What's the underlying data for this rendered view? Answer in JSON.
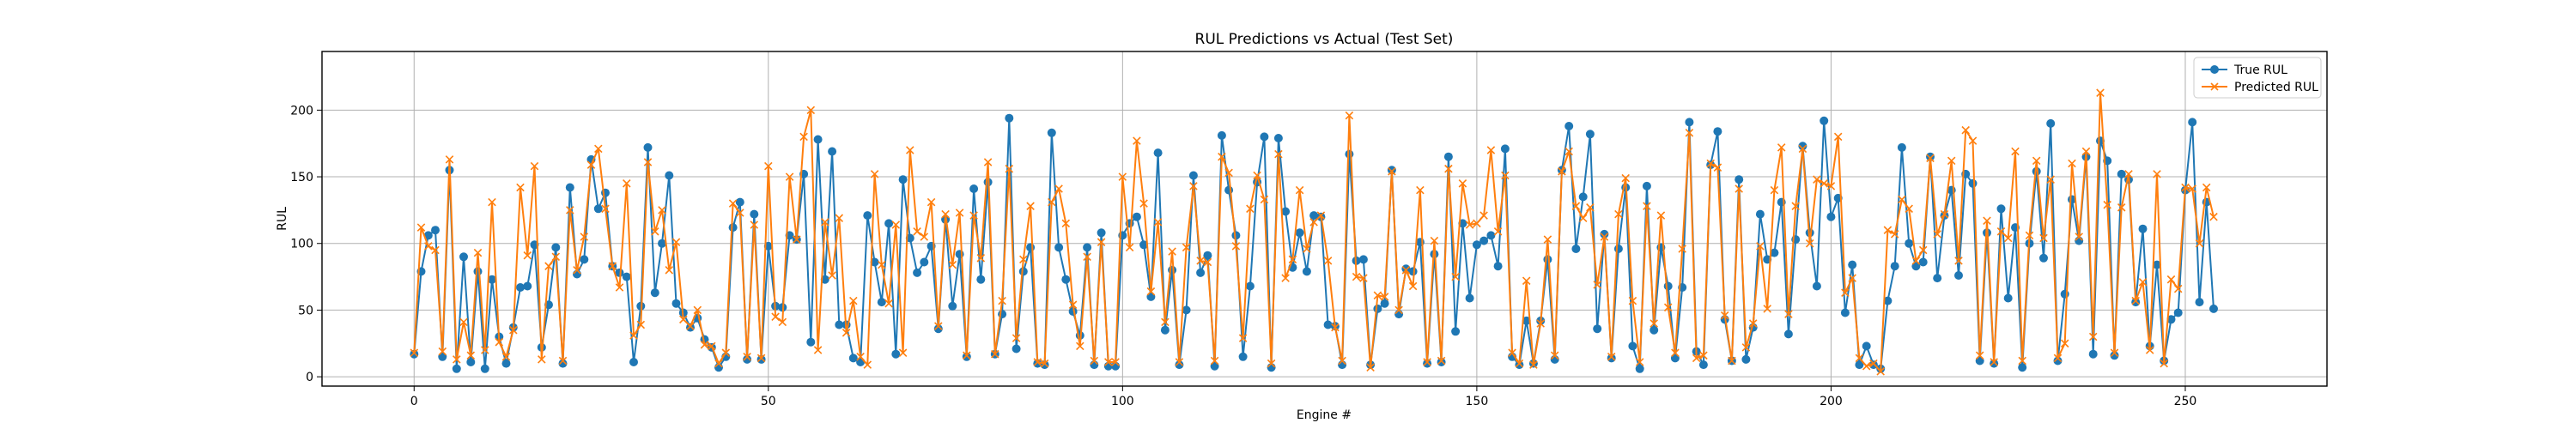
{
  "chart_data": {
    "type": "line",
    "title": "RUL Predictions vs Actual (Test Set)",
    "xlabel": "Engine #",
    "ylabel": "RUL",
    "xlim": [
      -13,
      270
    ],
    "ylim": [
      -7,
      244
    ],
    "xticks": [
      0,
      50,
      100,
      150,
      200,
      250
    ],
    "yticks": [
      0,
      50,
      100,
      150,
      200
    ],
    "grid": true,
    "legend_position": "top-right",
    "series": [
      {
        "name": "True RUL",
        "color": "#1f77b4",
        "marker": "circle",
        "values": [
          17,
          79,
          106,
          110,
          15,
          155,
          6,
          90,
          11,
          79,
          6,
          73,
          30,
          10,
          37,
          67,
          68,
          99,
          22,
          54,
          97,
          10,
          142,
          77,
          88,
          163,
          126,
          138,
          83,
          78,
          75,
          11,
          53,
          172,
          63,
          100,
          151,
          55,
          48,
          37,
          44,
          28,
          22,
          7,
          15,
          112,
          131,
          13,
          122,
          13,
          98,
          53,
          52,
          106,
          103,
          152,
          26,
          178,
          73,
          169,
          39,
          39,
          14,
          11,
          121,
          86,
          56,
          115,
          17,
          148,
          104,
          78,
          86,
          98,
          36,
          118,
          53,
          92,
          15,
          141,
          73,
          146,
          17,
          47,
          194,
          21,
          79,
          97,
          10,
          9,
          183,
          97,
          73,
          49,
          31,
          97,
          9,
          108,
          8,
          8,
          106,
          115,
          120,
          99,
          60,
          168,
          35,
          80,
          9,
          50,
          151,
          78,
          91,
          8,
          181,
          140,
          106,
          15,
          68,
          146,
          180,
          7,
          179,
          124,
          82,
          108,
          79,
          121,
          120,
          39,
          38,
          9,
          167,
          87,
          88,
          9,
          51,
          55,
          155,
          47,
          81,
          79,
          101,
          10,
          92,
          11,
          165,
          34,
          115,
          59,
          99,
          102,
          106,
          83,
          171,
          15,
          9,
          42,
          10,
          42,
          88,
          13,
          155,
          188,
          96,
          135,
          182,
          36,
          107,
          14,
          96,
          142,
          23,
          6,
          143,
          35,
          97,
          68,
          14,
          67,
          191,
          19,
          9,
          159,
          184,
          43,
          12,
          148,
          13,
          37,
          122,
          88,
          93,
          131,
          32,
          103,
          173,
          108,
          68,
          192,
          120,
          134,
          48,
          84,
          9,
          23,
          9,
          6,
          57,
          83,
          172,
          100,
          83,
          86,
          165,
          74,
          121,
          140,
          76,
          152,
          145,
          12,
          108,
          10,
          126,
          59,
          112,
          7,
          100,
          154,
          89,
          190,
          12,
          62,
          133,
          102,
          165,
          17,
          177,
          162,
          16,
          152,
          148,
          56,
          111,
          23,
          84,
          12,
          43,
          48,
          140,
          191,
          56,
          131,
          51
        ]
      },
      {
        "name": "Predicted RUL",
        "color": "#ff7f0e",
        "marker": "x",
        "values": [
          18,
          112,
          98,
          95,
          19,
          163,
          13,
          41,
          16,
          93,
          20,
          131,
          26,
          15,
          35,
          142,
          91,
          158,
          13,
          83,
          90,
          12,
          125,
          80,
          105,
          159,
          171,
          126,
          83,
          67,
          145,
          31,
          39,
          161,
          109,
          125,
          80,
          101,
          43,
          38,
          50,
          24,
          23,
          10,
          18,
          130,
          123,
          15,
          114,
          14,
          158,
          45,
          41,
          150,
          103,
          180,
          200,
          20,
          116,
          76,
          119,
          33,
          57,
          15,
          9,
          152,
          84,
          55,
          114,
          18,
          170,
          109,
          105,
          131,
          38,
          122,
          84,
          123,
          16,
          121,
          89,
          161,
          17,
          57,
          156,
          29,
          88,
          128,
          11,
          10,
          131,
          141,
          115,
          54,
          23,
          90,
          12,
          101,
          11,
          11,
          150,
          97,
          177,
          130,
          64,
          116,
          41,
          94,
          11,
          97,
          143,
          87,
          86,
          12,
          165,
          153,
          98,
          29,
          126,
          151,
          133,
          10,
          167,
          74,
          88,
          140,
          96,
          116,
          121,
          87,
          37,
          12,
          196,
          75,
          74,
          7,
          61,
          60,
          154,
          50,
          80,
          68,
          140,
          11,
          102,
          12,
          156,
          75,
          145,
          114,
          115,
          121,
          170,
          109,
          151,
          18,
          10,
          72,
          9,
          40,
          103,
          16,
          154,
          169,
          128,
          119,
          127,
          69,
          105,
          15,
          122,
          149,
          57,
          11,
          128,
          40,
          121,
          52,
          18,
          96,
          183,
          14,
          16,
          160,
          157,
          46,
          12,
          141,
          22,
          40,
          98,
          51,
          140,
          172,
          47,
          128,
          171,
          100,
          148,
          145,
          143,
          180,
          63,
          74,
          14,
          8,
          10,
          4,
          110,
          107,
          133,
          126,
          87,
          95,
          164,
          107,
          122,
          162,
          87,
          185,
          177,
          16,
          117,
          11,
          109,
          104,
          169,
          12,
          106,
          162,
          104,
          148,
          14,
          25,
          160,
          105,
          169,
          30,
          213,
          129,
          18,
          127,
          152,
          57,
          71,
          20,
          152,
          10,
          73,
          66,
          142,
          141,
          100,
          142,
          120
        ]
      }
    ]
  }
}
